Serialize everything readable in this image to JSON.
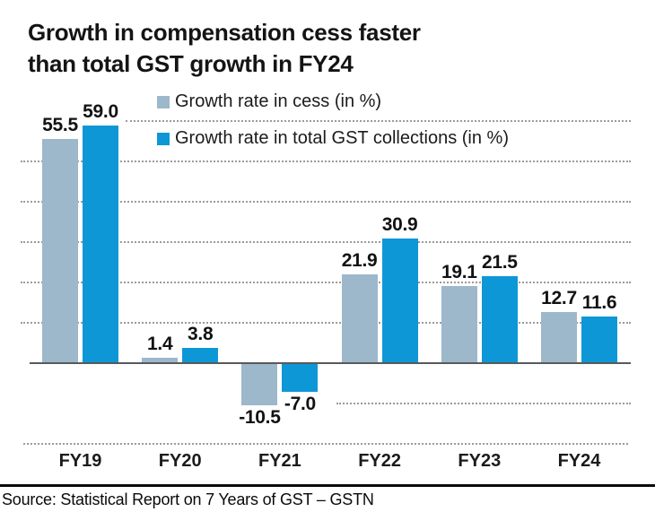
{
  "title": {
    "line1": "Growth in compensation cess faster",
    "line2": "than total GST growth in FY24"
  },
  "legend": [
    {
      "label": "Growth rate in cess (in %)",
      "color": "#9cb8ca"
    },
    {
      "label": "Growth rate in total GST collections (in %)",
      "color": "#0e97d7"
    }
  ],
  "source": "Source: Statistical Report on 7 Years of GST – GSTN",
  "chart_data": {
    "type": "bar",
    "title": "Growth in compensation cess faster than total GST growth in FY24",
    "categories": [
      "FY19",
      "FY20",
      "FY21",
      "FY22",
      "FY23",
      "FY24"
    ],
    "series": [
      {
        "name": "Growth rate in cess (in %)",
        "color": "#9cb8ca",
        "values": [
          55.5,
          1.4,
          -10.5,
          21.9,
          19.1,
          12.7
        ]
      },
      {
        "name": "Growth rate in total GST collections (in %)",
        "color": "#0e97d7",
        "values": [
          59.0,
          3.8,
          -7.0,
          30.9,
          21.5,
          11.6
        ]
      }
    ],
    "ylim": [
      -20,
      60
    ],
    "gridline_step": 10,
    "grid": "dotted horizontal",
    "legend_position": "top",
    "value_labels": true,
    "value_label_format": "one-decimal",
    "xlabel": "",
    "ylabel": ""
  }
}
